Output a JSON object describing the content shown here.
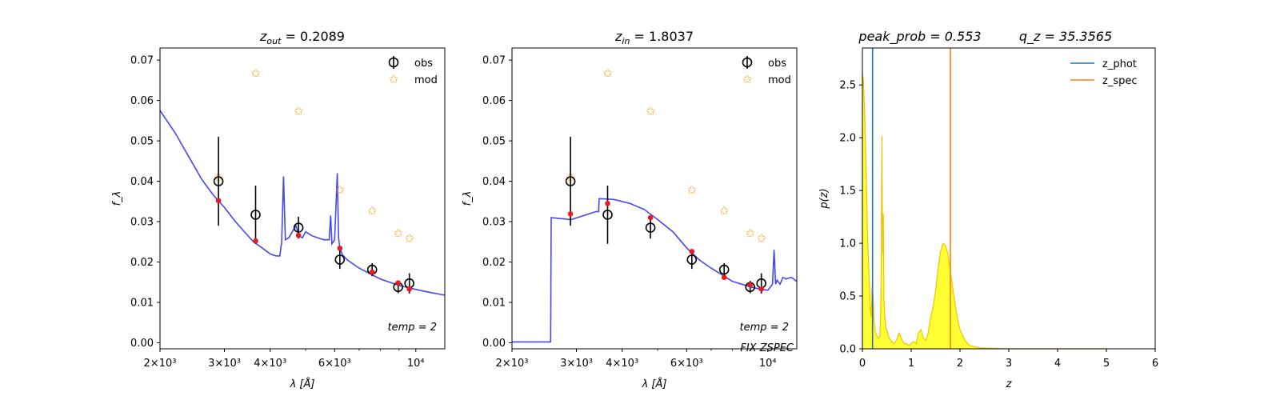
{
  "chart_data": [
    {
      "type": "line",
      "title_base": "z",
      "title_sub": "out",
      "title_rest": " = 0.2089",
      "xlabel": "λ [Å]",
      "ylabel": "f_λ",
      "xscale": "log",
      "xlim": [
        2000,
        12000
      ],
      "ylim": [
        -0.0015,
        0.073
      ],
      "yticks": [
        0.0,
        0.01,
        0.02,
        0.03,
        0.04,
        0.05,
        0.06,
        0.07
      ],
      "ytick_labels": [
        "0.00",
        "0.01",
        "0.02",
        "0.03",
        "0.04",
        "0.05",
        "0.06",
        "0.07"
      ],
      "xticks": [
        2000,
        3000,
        4000,
        6000,
        10000
      ],
      "xtick_labels": [
        "2×10³",
        "3×10³",
        "4×10³",
        "6×10³",
        "10⁴"
      ],
      "legend": [
        "obs",
        "mod"
      ],
      "legend_position": "top-right",
      "annotations": [
        "temp = 2"
      ],
      "colors": {
        "sed": "#3c3cf0",
        "obs": "#000000",
        "mod": "#f5a623",
        "sed_points": "#e8191f"
      },
      "sed_line": {
        "x": [
          2000,
          2200,
          2400,
          2600,
          2800,
          3000,
          3200,
          3400,
          3600,
          3800,
          4000,
          4150,
          4250,
          4300,
          4350,
          4400,
          4500,
          4700,
          4800,
          4900,
          5000,
          5100,
          5200,
          5400,
          5600,
          5800,
          5850,
          5900,
          6000,
          6100,
          6150,
          6200,
          6300,
          6500,
          7000,
          7600,
          8000,
          9000,
          10000,
          11000,
          12000
        ],
        "y": [
          0.0575,
          0.052,
          0.046,
          0.0405,
          0.0365,
          0.0335,
          0.0302,
          0.0275,
          0.025,
          0.0235,
          0.022,
          0.0215,
          0.0215,
          0.025,
          0.0412,
          0.0255,
          0.026,
          0.029,
          0.0265,
          0.026,
          0.0275,
          0.027,
          0.0265,
          0.026,
          0.0255,
          0.0255,
          0.0315,
          0.0245,
          0.0255,
          0.042,
          0.026,
          0.0235,
          0.0218,
          0.0205,
          0.0185,
          0.0168,
          0.0158,
          0.0142,
          0.0132,
          0.0124,
          0.0118
        ]
      },
      "obs": {
        "x": [
          2890,
          3650,
          4780,
          6200,
          7600,
          8950,
          9600
        ],
        "y": [
          0.04,
          0.0317,
          0.0285,
          0.0206,
          0.0181,
          0.0138,
          0.0147
        ],
        "err": [
          0.011,
          0.0072,
          0.0027,
          0.0023,
          0.0016,
          0.0015,
          0.0025
        ]
      },
      "mod": {
        "x": [
          2890,
          3650,
          4780,
          6200,
          7600,
          8950,
          9600
        ],
        "y": [
          0.041,
          0.0668,
          0.0573,
          0.0378,
          0.0327,
          0.0271,
          0.0258
        ]
      },
      "sed_points": {
        "x": [
          2890,
          3650,
          4780,
          6200,
          7600,
          8950,
          9600
        ],
        "y": [
          0.0352,
          0.0252,
          0.0266,
          0.0234,
          0.0175,
          0.0148,
          0.0133
        ]
      }
    },
    {
      "type": "line",
      "title_base": "z",
      "title_sub": "in",
      "title_rest": " = 1.8037",
      "xlabel": "λ [Å]",
      "ylabel": "f_λ",
      "xscale": "log",
      "xlim": [
        2000,
        12000
      ],
      "ylim": [
        -0.0015,
        0.073
      ],
      "yticks": [
        0.0,
        0.01,
        0.02,
        0.03,
        0.04,
        0.05,
        0.06,
        0.07
      ],
      "ytick_labels": [
        "0.00",
        "0.01",
        "0.02",
        "0.03",
        "0.04",
        "0.05",
        "0.06",
        "0.07"
      ],
      "xticks": [
        2000,
        3000,
        4000,
        6000,
        10000
      ],
      "xtick_labels": [
        "2×10³",
        "3×10³",
        "4×10³",
        "6×10³",
        "10⁴"
      ],
      "legend": [
        "obs",
        "mod"
      ],
      "legend_position": "top-right",
      "annotations": [
        "temp = 2",
        "FIX ZSPEC"
      ],
      "colors": {
        "sed": "#3c3cf0",
        "obs": "#000000",
        "mod": "#f5a623",
        "sed_points": "#e8191f"
      },
      "sed_line": {
        "x": [
          2000,
          2550,
          2560,
          2900,
          3400,
          3450,
          3460,
          3800,
          4200,
          4600,
          5000,
          5500,
          6000,
          6500,
          7000,
          7600,
          8000,
          9000,
          9600,
          10000,
          10300,
          10400,
          10500,
          10600,
          10800,
          11000,
          11200,
          11600,
          12000
        ],
        "y": [
          0.0002,
          0.0002,
          0.031,
          0.0305,
          0.0325,
          0.0325,
          0.0357,
          0.0355,
          0.0345,
          0.033,
          0.0305,
          0.0275,
          0.0235,
          0.0205,
          0.0185,
          0.0165,
          0.0152,
          0.0138,
          0.0132,
          0.013,
          0.0145,
          0.023,
          0.0145,
          0.0155,
          0.0145,
          0.0162,
          0.0158,
          0.0162,
          0.0152
        ]
      },
      "obs": {
        "x": [
          2890,
          3650,
          4780,
          6200,
          7600,
          8950,
          9600
        ],
        "y": [
          0.04,
          0.0317,
          0.0285,
          0.0206,
          0.0181,
          0.0138,
          0.0147
        ],
        "err": [
          0.011,
          0.0072,
          0.0027,
          0.0023,
          0.0016,
          0.0015,
          0.0025
        ]
      },
      "mod": {
        "x": [
          2890,
          3650,
          4780,
          6200,
          7600,
          8950,
          9600
        ],
        "y": [
          0.041,
          0.0668,
          0.0573,
          0.0378,
          0.0327,
          0.0271,
          0.0258
        ]
      },
      "sed_points": {
        "x": [
          2890,
          3650,
          4780,
          6200,
          7600,
          8950,
          9600
        ],
        "y": [
          0.0319,
          0.0345,
          0.031,
          0.0226,
          0.0162,
          0.0143,
          0.0133
        ]
      }
    },
    {
      "type": "area",
      "title_left": "peak_prob = 0.553",
      "title_right": "q_z = 35.3565",
      "xlabel": "z",
      "ylabel": "p(z)",
      "xlim": [
        0,
        6
      ],
      "ylim": [
        0,
        2.85
      ],
      "xticks": [
        0,
        1,
        2,
        3,
        4,
        5,
        6
      ],
      "xtick_labels": [
        "0",
        "1",
        "2",
        "3",
        "4",
        "5",
        "6"
      ],
      "yticks": [
        0.0,
        0.5,
        1.0,
        1.5,
        2.0,
        2.5
      ],
      "ytick_labels": [
        "0.0",
        "0.5",
        "1.0",
        "1.5",
        "2.0",
        "2.5"
      ],
      "legend": [
        "z_phot",
        "z_spec"
      ],
      "legend_position": "top-right",
      "vlines": [
        {
          "name": "z_phot",
          "x": 0.2089,
          "color": "#1f77b4"
        },
        {
          "name": "z_spec",
          "x": 1.8037,
          "color": "#ff7f0e"
        }
      ],
      "colors": {
        "fill": "#ffff33",
        "edge": "#f2c200"
      },
      "pdf": {
        "x": [
          0.0,
          0.02,
          0.05,
          0.08,
          0.11,
          0.14,
          0.16,
          0.18,
          0.2,
          0.22,
          0.24,
          0.27,
          0.3,
          0.33,
          0.36,
          0.38,
          0.4,
          0.41,
          0.42,
          0.43,
          0.44,
          0.46,
          0.47,
          0.48,
          0.5,
          0.52,
          0.55,
          0.6,
          0.65,
          0.7,
          0.75,
          0.8,
          0.85,
          0.9,
          0.95,
          1.0,
          1.05,
          1.1,
          1.15,
          1.2,
          1.25,
          1.3,
          1.35,
          1.4,
          1.45,
          1.5,
          1.55,
          1.6,
          1.65,
          1.7,
          1.75,
          1.8,
          1.85,
          1.9,
          1.95,
          2.0,
          2.1,
          2.2,
          2.4,
          2.6,
          3.0,
          4.0,
          5.0
        ],
        "y": [
          2.6,
          2.55,
          2.2,
          1.6,
          1.0,
          0.65,
          0.4,
          0.3,
          0.6,
          0.5,
          0.25,
          0.15,
          0.12,
          0.1,
          0.12,
          0.5,
          2.02,
          1.2,
          0.9,
          1.28,
          0.5,
          0.3,
          0.25,
          0.2,
          0.18,
          0.15,
          0.1,
          0.07,
          0.05,
          0.08,
          0.15,
          0.1,
          0.05,
          0.05,
          0.03,
          0.05,
          0.07,
          0.05,
          0.15,
          0.18,
          0.1,
          0.08,
          0.15,
          0.3,
          0.4,
          0.55,
          0.75,
          0.92,
          1.0,
          0.98,
          0.9,
          0.75,
          0.58,
          0.42,
          0.28,
          0.18,
          0.08,
          0.03,
          0.01,
          0.005,
          0.0,
          0.0,
          0.0
        ]
      }
    }
  ]
}
